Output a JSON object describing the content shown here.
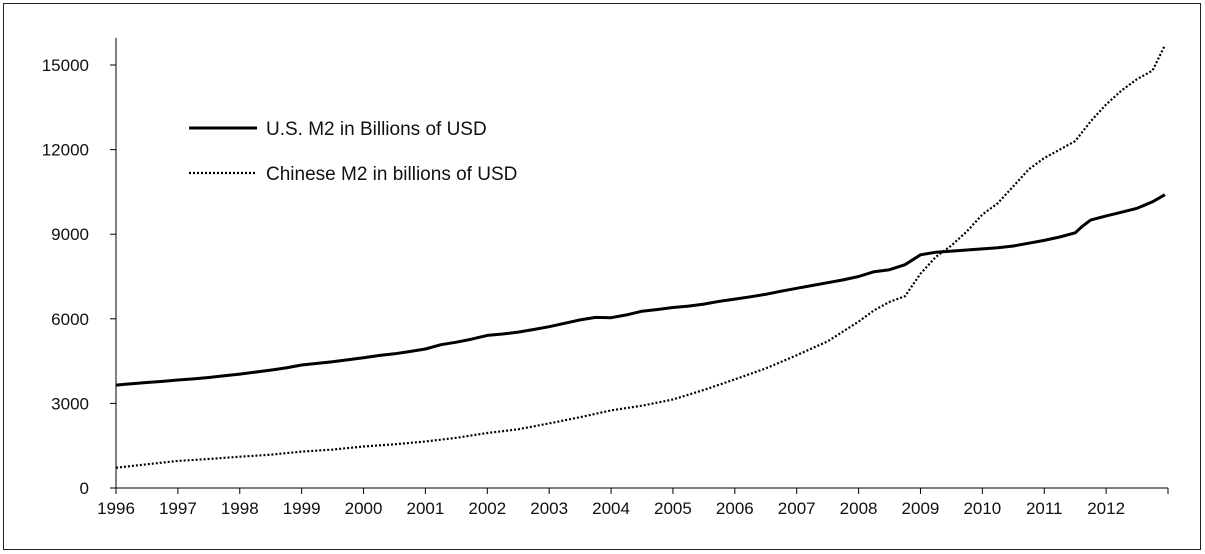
{
  "chart_data": {
    "type": "line",
    "title": "",
    "xlabel": "",
    "ylabel": "",
    "xlim": [
      1996,
      2013
    ],
    "ylim": [
      0,
      15000
    ],
    "y_ticks": [
      0,
      3000,
      6000,
      9000,
      12000,
      15000
    ],
    "x_tick_labels": [
      "1996",
      "1997",
      "1998",
      "1999",
      "2000",
      "2001",
      "2002",
      "2003",
      "2004",
      "2005",
      "2006",
      "2007",
      "2008",
      "2009",
      "2010",
      "2011",
      "2012"
    ],
    "grid": false,
    "legend": {
      "position": "top-left"
    },
    "series": [
      {
        "name": "U.S. M2 in Billions  of USD",
        "style": "solid",
        "color": "#000000",
        "x": [
          1996.0,
          1996.25,
          1996.5,
          1996.75,
          1997.0,
          1997.25,
          1997.5,
          1997.75,
          1998.0,
          1998.25,
          1998.5,
          1998.75,
          1999.0,
          1999.25,
          1999.5,
          1999.75,
          2000.0,
          2000.25,
          2000.5,
          2000.75,
          2001.0,
          2001.25,
          2001.5,
          2001.75,
          2002.0,
          2002.25,
          2002.5,
          2002.75,
          2003.0,
          2003.25,
          2003.5,
          2003.75,
          2004.0,
          2004.25,
          2004.5,
          2004.75,
          2005.0,
          2005.25,
          2005.5,
          2005.75,
          2006.0,
          2006.25,
          2006.5,
          2006.75,
          2007.0,
          2007.25,
          2007.5,
          2007.75,
          2008.0,
          2008.25,
          2008.5,
          2008.75,
          2009.0,
          2009.25,
          2009.5,
          2009.75,
          2010.0,
          2010.25,
          2010.5,
          2010.75,
          2011.0,
          2011.25,
          2011.5,
          2011.6,
          2011.75,
          2012.0,
          2012.25,
          2012.5,
          2012.75,
          2012.95
        ],
        "values": [
          3650,
          3700,
          3740,
          3780,
          3830,
          3870,
          3920,
          3980,
          4040,
          4110,
          4180,
          4260,
          4360,
          4420,
          4480,
          4550,
          4620,
          4700,
          4760,
          4840,
          4930,
          5080,
          5170,
          5280,
          5410,
          5460,
          5530,
          5620,
          5720,
          5840,
          5960,
          6050,
          6040,
          6140,
          6270,
          6330,
          6400,
          6450,
          6520,
          6620,
          6700,
          6780,
          6870,
          6980,
          7080,
          7180,
          7280,
          7380,
          7500,
          7670,
          7740,
          7920,
          8270,
          8360,
          8400,
          8440,
          8480,
          8520,
          8580,
          8680,
          8780,
          8900,
          9050,
          9250,
          9500,
          9650,
          9780,
          9920,
          10150,
          10400
        ]
      },
      {
        "name": "Chinese M2 in billions of USD",
        "style": "dotted",
        "color": "#000000",
        "x": [
          1996.0,
          1996.5,
          1997.0,
          1997.5,
          1998.0,
          1998.5,
          1999.0,
          1999.5,
          2000.0,
          2000.5,
          2001.0,
          2001.5,
          2002.0,
          2002.5,
          2003.0,
          2003.5,
          2004.0,
          2004.5,
          2005.0,
          2005.5,
          2006.0,
          2006.5,
          2007.0,
          2007.5,
          2008.0,
          2008.25,
          2008.5,
          2008.75,
          2009.0,
          2009.25,
          2009.5,
          2009.75,
          2010.0,
          2010.25,
          2010.5,
          2010.75,
          2011.0,
          2011.25,
          2011.5,
          2011.75,
          2012.0,
          2012.25,
          2012.5,
          2012.75,
          2012.95
        ],
        "values": [
          720,
          840,
          960,
          1030,
          1110,
          1180,
          1290,
          1360,
          1470,
          1550,
          1650,
          1780,
          1950,
          2080,
          2290,
          2510,
          2750,
          2920,
          3140,
          3480,
          3850,
          4240,
          4710,
          5200,
          5900,
          6300,
          6600,
          6800,
          7600,
          8200,
          8600,
          9100,
          9700,
          10100,
          10700,
          11300,
          11700,
          12000,
          12300,
          13000,
          13600,
          14100,
          14500,
          14800,
          15700
        ]
      }
    ]
  }
}
